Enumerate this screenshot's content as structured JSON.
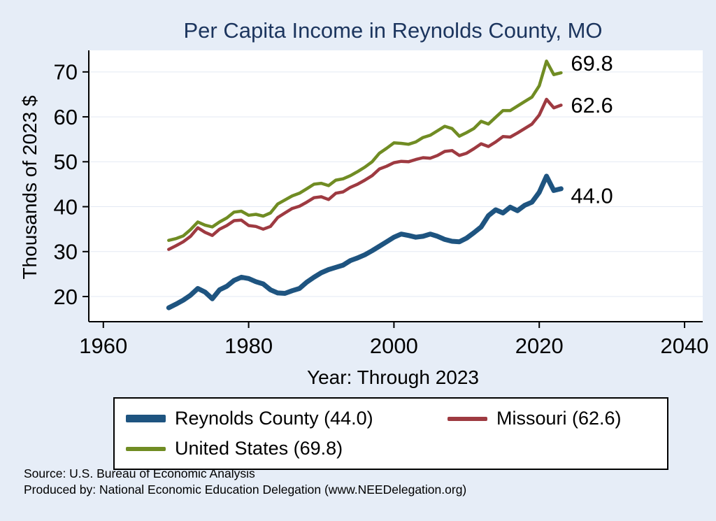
{
  "title": "Per Capita Income in Reynolds County, MO",
  "colors": {
    "background": "#e6edf7",
    "plot_bg": "#ffffff",
    "title": "#1c355e",
    "grid": "#e3e9f3",
    "axis": "#000000",
    "reynolds": "#1e5480",
    "missouri": "#9e3a41",
    "us": "#708c23"
  },
  "chart_data": {
    "type": "line",
    "title": "Per Capita Income in Reynolds County, MO",
    "xlabel": "Year: Through 2023",
    "ylabel": "Thousands of 2023 $",
    "xlim": [
      1958,
      2042.5
    ],
    "ylim": [
      14.4,
      74.8
    ],
    "x_ticks": [
      1960,
      1980,
      2000,
      2020,
      2040
    ],
    "y_ticks": [
      20,
      30,
      40,
      50,
      60,
      70
    ],
    "grid": "horizontal",
    "legend_position": "bottom",
    "x": [
      1969,
      1970,
      1971,
      1972,
      1973,
      1974,
      1975,
      1976,
      1977,
      1978,
      1979,
      1980,
      1981,
      1982,
      1983,
      1984,
      1985,
      1986,
      1987,
      1988,
      1989,
      1990,
      1991,
      1992,
      1993,
      1994,
      1995,
      1996,
      1997,
      1998,
      1999,
      2000,
      2001,
      2002,
      2003,
      2004,
      2005,
      2006,
      2007,
      2008,
      2009,
      2010,
      2011,
      2012,
      2013,
      2014,
      2015,
      2016,
      2017,
      2018,
      2019,
      2020,
      2021,
      2022,
      2023
    ],
    "series": [
      {
        "name": "Reynolds County",
        "legend_label": "Reynolds County (44.0)",
        "color_key": "reynolds",
        "end_label": "44.0",
        "end_value": 44.0,
        "end_label_dy": 10,
        "line_width": 7,
        "values": [
          17.5,
          18.3,
          19.2,
          20.3,
          21.8,
          21.0,
          19.5,
          21.5,
          22.3,
          23.6,
          24.3,
          24.0,
          23.3,
          22.8,
          21.5,
          20.8,
          20.7,
          21.3,
          21.8,
          23.2,
          24.3,
          25.3,
          26.0,
          26.5,
          27.0,
          28.0,
          28.6,
          29.3,
          30.2,
          31.2,
          32.2,
          33.2,
          33.9,
          33.6,
          33.2,
          33.4,
          33.9,
          33.4,
          32.7,
          32.3,
          32.2,
          33.0,
          34.2,
          35.5,
          38.0,
          39.3,
          38.6,
          39.9,
          39.1,
          40.3,
          41.0,
          43.2,
          46.8,
          43.6,
          44.0
        ]
      },
      {
        "name": "Missouri",
        "legend_label": "Missouri (62.6)",
        "color_key": "missouri",
        "end_label": "62.6",
        "end_value": 62.6,
        "end_label_dy": 0,
        "line_width": 4.5,
        "values": [
          30.5,
          31.3,
          32.2,
          33.4,
          35.3,
          34.3,
          33.6,
          35.0,
          35.8,
          36.9,
          37.0,
          35.8,
          35.6,
          35.0,
          35.6,
          37.6,
          38.6,
          39.6,
          40.1,
          41.0,
          42.0,
          42.2,
          41.6,
          43.0,
          43.3,
          44.3,
          45.0,
          45.9,
          46.9,
          48.4,
          49.0,
          49.8,
          50.1,
          50.0,
          50.5,
          50.9,
          50.8,
          51.4,
          52.3,
          52.5,
          51.4,
          51.9,
          52.9,
          54.0,
          53.4,
          54.4,
          55.6,
          55.5,
          56.4,
          57.4,
          58.4,
          60.4,
          63.9,
          62.0,
          62.6
        ]
      },
      {
        "name": "United States",
        "legend_label": "United States (69.8)",
        "color_key": "us",
        "end_label": "69.8",
        "end_value": 69.8,
        "end_label_dy": -14,
        "line_width": 4.5,
        "values": [
          32.5,
          32.9,
          33.5,
          34.9,
          36.6,
          35.9,
          35.5,
          36.6,
          37.5,
          38.8,
          39.0,
          38.1,
          38.3,
          37.9,
          38.6,
          40.6,
          41.5,
          42.4,
          43.0,
          44.0,
          45.0,
          45.2,
          44.7,
          45.9,
          46.2,
          46.9,
          47.8,
          48.8,
          50.0,
          51.9,
          53.0,
          54.2,
          54.1,
          53.9,
          54.4,
          55.4,
          55.9,
          56.9,
          57.9,
          57.4,
          55.7,
          56.5,
          57.4,
          59.0,
          58.4,
          59.9,
          61.4,
          61.4,
          62.4,
          63.4,
          64.4,
          66.9,
          72.4,
          69.4,
          69.8
        ]
      }
    ]
  },
  "legend": {
    "items": [
      {
        "label": "Reynolds County (44.0)",
        "color_key": "reynolds"
      },
      {
        "label": "Missouri (62.6)",
        "color_key": "missouri"
      },
      {
        "label": "United States (69.8)",
        "color_key": "us"
      }
    ]
  },
  "footer": {
    "source": "Source: U.S. Bureau of Economic Analysis",
    "produced_by": "Produced by: National Economic Education Delegation (www.NEEDelegation.org)"
  }
}
